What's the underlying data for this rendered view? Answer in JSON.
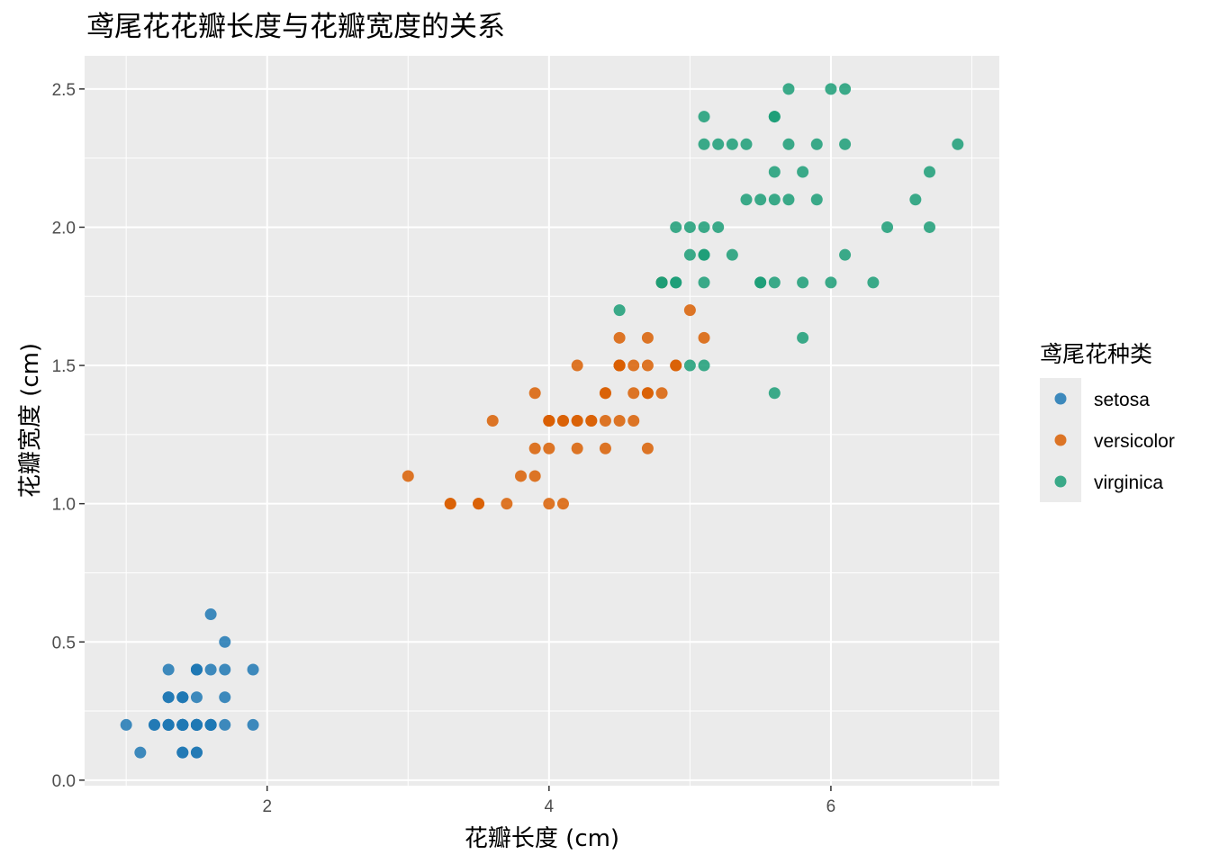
{
  "chart_data": {
    "type": "scatter",
    "title": "鸢尾花花瓣长度与花瓣宽度的关系",
    "xlabel": "花瓣长度 (cm)",
    "ylabel": "花瓣宽度 (cm)",
    "xlim": [
      0.705,
      7.195
    ],
    "ylim": [
      -0.02,
      2.62
    ],
    "x_ticks": [
      2,
      4,
      6
    ],
    "x_tick_labels": [
      "2",
      "4",
      "6"
    ],
    "y_ticks": [
      0,
      0.5,
      1,
      1.5,
      2,
      2.5
    ],
    "y_tick_labels": [
      "0.0",
      "0.5",
      "1.0",
      "1.5",
      "2.0",
      "2.5"
    ],
    "grid": true,
    "legend": {
      "title": "鸢尾花种类",
      "position": "right"
    },
    "series": [
      {
        "name": "setosa",
        "color": "#1f78b4",
        "points": [
          [
            1.4,
            0.2
          ],
          [
            1.4,
            0.2
          ],
          [
            1.3,
            0.2
          ],
          [
            1.5,
            0.2
          ],
          [
            1.4,
            0.2
          ],
          [
            1.7,
            0.4
          ],
          [
            1.4,
            0.3
          ],
          [
            1.5,
            0.2
          ],
          [
            1.4,
            0.2
          ],
          [
            1.5,
            0.1
          ],
          [
            1.5,
            0.2
          ],
          [
            1.6,
            0.2
          ],
          [
            1.4,
            0.1
          ],
          [
            1.1,
            0.1
          ],
          [
            1.2,
            0.2
          ],
          [
            1.5,
            0.4
          ],
          [
            1.3,
            0.4
          ],
          [
            1.4,
            0.3
          ],
          [
            1.7,
            0.3
          ],
          [
            1.5,
            0.3
          ],
          [
            1.7,
            0.2
          ],
          [
            1.5,
            0.4
          ],
          [
            1.0,
            0.2
          ],
          [
            1.7,
            0.5
          ],
          [
            1.9,
            0.2
          ],
          [
            1.6,
            0.2
          ],
          [
            1.6,
            0.4
          ],
          [
            1.5,
            0.2
          ],
          [
            1.4,
            0.2
          ],
          [
            1.6,
            0.2
          ],
          [
            1.6,
            0.2
          ],
          [
            1.5,
            0.4
          ],
          [
            1.5,
            0.1
          ],
          [
            1.4,
            0.2
          ],
          [
            1.5,
            0.2
          ],
          [
            1.2,
            0.2
          ],
          [
            1.3,
            0.2
          ],
          [
            1.4,
            0.1
          ],
          [
            1.3,
            0.2
          ],
          [
            1.5,
            0.2
          ],
          [
            1.3,
            0.3
          ],
          [
            1.3,
            0.3
          ],
          [
            1.3,
            0.2
          ],
          [
            1.6,
            0.6
          ],
          [
            1.9,
            0.4
          ],
          [
            1.4,
            0.3
          ],
          [
            1.6,
            0.2
          ],
          [
            1.4,
            0.2
          ],
          [
            1.5,
            0.2
          ],
          [
            1.4,
            0.2
          ]
        ]
      },
      {
        "name": "versicolor",
        "color": "#d95f02",
        "points": [
          [
            4.7,
            1.4
          ],
          [
            4.5,
            1.5
          ],
          [
            4.9,
            1.5
          ],
          [
            4.0,
            1.3
          ],
          [
            4.6,
            1.5
          ],
          [
            4.5,
            1.3
          ],
          [
            4.7,
            1.6
          ],
          [
            3.3,
            1.0
          ],
          [
            4.6,
            1.3
          ],
          [
            3.9,
            1.4
          ],
          [
            3.5,
            1.0
          ],
          [
            4.2,
            1.5
          ],
          [
            4.0,
            1.0
          ],
          [
            4.7,
            1.4
          ],
          [
            3.6,
            1.3
          ],
          [
            4.4,
            1.4
          ],
          [
            4.5,
            1.5
          ],
          [
            4.1,
            1.0
          ],
          [
            4.5,
            1.5
          ],
          [
            3.9,
            1.1
          ],
          [
            4.8,
            1.8
          ],
          [
            4.0,
            1.3
          ],
          [
            4.9,
            1.5
          ],
          [
            4.7,
            1.2
          ],
          [
            4.3,
            1.3
          ],
          [
            4.4,
            1.4
          ],
          [
            4.8,
            1.4
          ],
          [
            5.0,
            1.7
          ],
          [
            4.5,
            1.5
          ],
          [
            3.5,
            1.0
          ],
          [
            3.8,
            1.1
          ],
          [
            3.7,
            1.0
          ],
          [
            3.9,
            1.2
          ],
          [
            5.1,
            1.6
          ],
          [
            4.5,
            1.5
          ],
          [
            4.5,
            1.6
          ],
          [
            4.7,
            1.5
          ],
          [
            4.4,
            1.3
          ],
          [
            4.1,
            1.3
          ],
          [
            4.0,
            1.3
          ],
          [
            4.4,
            1.2
          ],
          [
            4.6,
            1.4
          ],
          [
            4.0,
            1.2
          ],
          [
            3.3,
            1.0
          ],
          [
            4.2,
            1.3
          ],
          [
            4.2,
            1.2
          ],
          [
            4.2,
            1.3
          ],
          [
            4.3,
            1.3
          ],
          [
            3.0,
            1.1
          ],
          [
            4.1,
            1.3
          ]
        ]
      },
      {
        "name": "virginica",
        "color": "#1b9e77",
        "points": [
          [
            6.0,
            2.5
          ],
          [
            5.1,
            1.9
          ],
          [
            5.9,
            2.1
          ],
          [
            5.6,
            1.8
          ],
          [
            5.8,
            2.2
          ],
          [
            6.6,
            2.1
          ],
          [
            4.5,
            1.7
          ],
          [
            6.3,
            1.8
          ],
          [
            5.8,
            1.8
          ],
          [
            6.1,
            2.5
          ],
          [
            5.1,
            2.0
          ],
          [
            5.3,
            1.9
          ],
          [
            5.5,
            2.1
          ],
          [
            5.0,
            2.0
          ],
          [
            5.1,
            2.4
          ],
          [
            5.3,
            2.3
          ],
          [
            5.5,
            1.8
          ],
          [
            6.7,
            2.2
          ],
          [
            6.9,
            2.3
          ],
          [
            5.0,
            1.5
          ],
          [
            5.7,
            2.3
          ],
          [
            4.9,
            2.0
          ],
          [
            6.7,
            2.0
          ],
          [
            4.9,
            1.8
          ],
          [
            5.7,
            2.1
          ],
          [
            6.0,
            1.8
          ],
          [
            4.8,
            1.8
          ],
          [
            4.9,
            1.8
          ],
          [
            5.6,
            2.1
          ],
          [
            5.8,
            1.6
          ],
          [
            6.1,
            1.9
          ],
          [
            6.4,
            2.0
          ],
          [
            5.6,
            2.2
          ],
          [
            5.1,
            1.5
          ],
          [
            5.6,
            1.4
          ],
          [
            6.1,
            2.3
          ],
          [
            5.6,
            2.4
          ],
          [
            5.5,
            1.8
          ],
          [
            4.8,
            1.8
          ],
          [
            5.4,
            2.1
          ],
          [
            5.6,
            2.4
          ],
          [
            5.1,
            2.3
          ],
          [
            5.1,
            1.9
          ],
          [
            5.9,
            2.3
          ],
          [
            5.7,
            2.5
          ],
          [
            5.2,
            2.3
          ],
          [
            5.0,
            1.9
          ],
          [
            5.2,
            2.0
          ],
          [
            5.4,
            2.3
          ],
          [
            5.1,
            1.8
          ]
        ]
      }
    ]
  }
}
